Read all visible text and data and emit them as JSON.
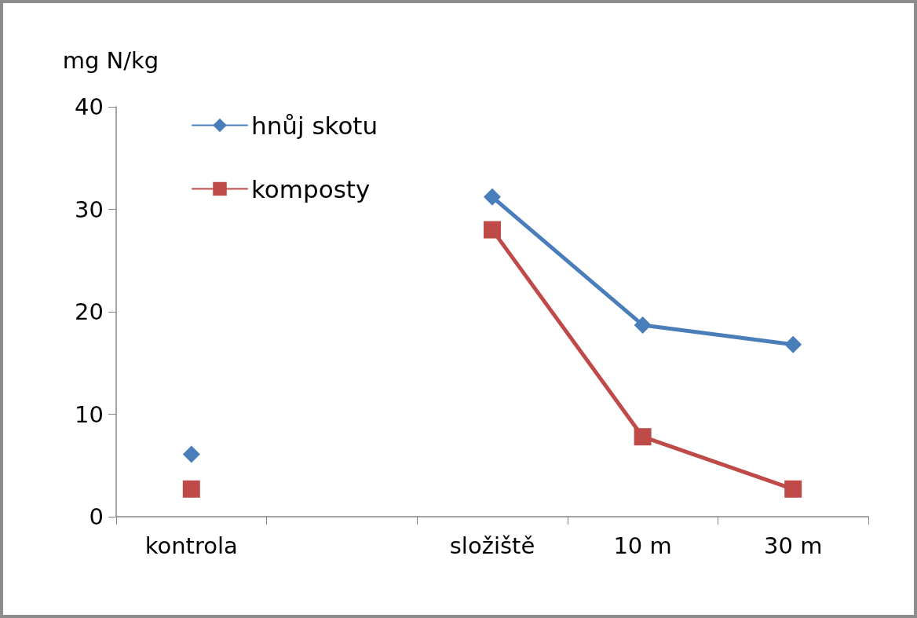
{
  "chart_data": {
    "type": "line",
    "ylabel": "mg N/kg",
    "categories": [
      "kontrola",
      null,
      "složiště",
      "10 m",
      "30 m"
    ],
    "series": [
      {
        "name": "hnůj skotu",
        "color": "#4a7ebb",
        "marker": "diamond",
        "values": [
          6.1,
          null,
          31.2,
          18.7,
          16.8
        ]
      },
      {
        "name": "komposty",
        "color": "#be4b48",
        "marker": "square",
        "values": [
          2.7,
          null,
          28.0,
          7.8,
          2.7
        ]
      }
    ],
    "ylim": [
      0,
      40
    ],
    "yticks": [
      0,
      10,
      20,
      30,
      40
    ],
    "grid": false,
    "legend": "top left",
    "line_style": "solid"
  }
}
